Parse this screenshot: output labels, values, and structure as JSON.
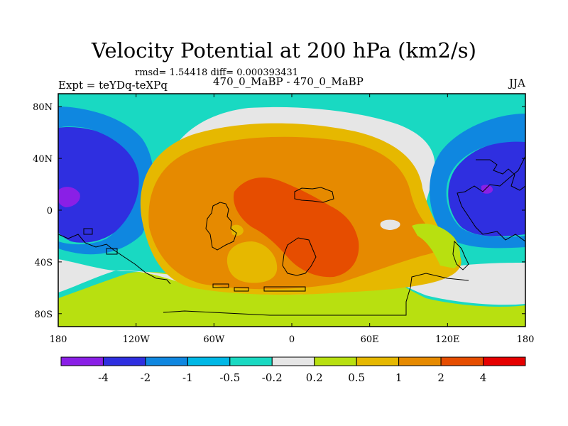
{
  "chart_data": {
    "type": "heatmap",
    "title": "Velocity Potential at 200 hPa (km2/s)",
    "stats_text": "rmsd= 1.54418  diff= 0.000393431",
    "left_label": "Expt = teYDq-teXPq",
    "center_label": "470_0_MaBP - 470_0_MaBP",
    "right_label": "JJA",
    "x_ticks": [
      "180",
      "120W",
      "60W",
      "0",
      "60E",
      "120E",
      "180"
    ],
    "x_tick_values": [
      -180,
      -120,
      -60,
      0,
      60,
      120,
      180
    ],
    "y_ticks": [
      "80N",
      "40N",
      "0",
      "40S",
      "80S"
    ],
    "y_tick_values": [
      80,
      40,
      0,
      -40,
      -80
    ],
    "xlim": [
      -180,
      180
    ],
    "ylim": [
      -90,
      90
    ],
    "colorbar": {
      "levels": [
        "-4",
        "-2",
        "-1",
        "-0.5",
        "-0.2",
        "0.2",
        "0.5",
        "1",
        "2",
        "4"
      ],
      "colors": [
        "#8a1fe6",
        "#2f2fe0",
        "#0f87e0",
        "#00b8e6",
        "#19d9c2",
        "#e6e6e6",
        "#b8e010",
        "#e6b800",
        "#e68a00",
        "#e64d00",
        "#e60000"
      ]
    },
    "regions": [
      {
        "name": "global-background",
        "level_index": 4
      },
      {
        "name": "eastern-hemisphere-high-positive",
        "level_index": 7,
        "center_lon": 0,
        "center_lat": 0
      },
      {
        "name": "central-maximum",
        "level_index": 9,
        "center_lon": 10,
        "center_lat": 0
      },
      {
        "name": "west-pacific-negative",
        "level_index": 1,
        "center_lon": -160,
        "center_lat": 20
      },
      {
        "name": "east-pacific-negative",
        "level_index": 1,
        "center_lon": 155,
        "center_lat": 10
      },
      {
        "name": "west-pacific-minimum",
        "level_index": 0,
        "center_lon": -165,
        "center_lat": 13
      },
      {
        "name": "east-pacific-minimum",
        "level_index": 0,
        "center_lon": 148,
        "center_lat": 15
      }
    ]
  }
}
